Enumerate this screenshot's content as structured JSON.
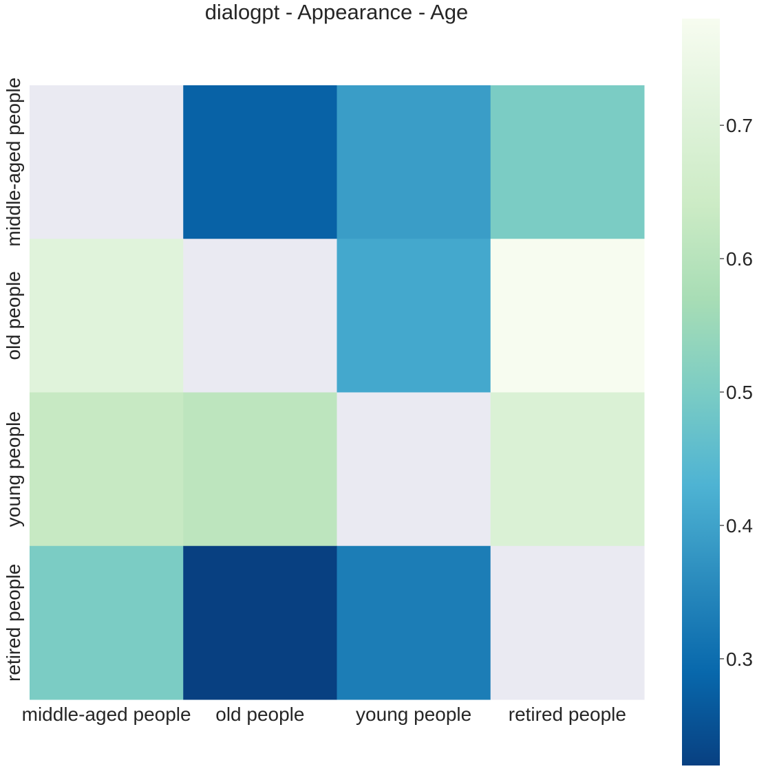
{
  "chart_data": {
    "type": "heatmap",
    "title": "dialogpt - Appearance - Age",
    "xlabel": "",
    "ylabel": "",
    "x_categories": [
      "middle-aged people",
      "old people",
      "young people",
      "retired people"
    ],
    "y_categories": [
      "middle-aged people",
      "old people",
      "young people",
      "retired people"
    ],
    "values": [
      [
        null,
        0.28,
        0.39,
        0.5
      ],
      [
        0.71,
        null,
        0.41,
        0.78
      ],
      [
        0.63,
        0.61,
        null,
        0.69
      ],
      [
        0.5,
        0.22,
        0.33,
        null
      ]
    ],
    "missing_color": "#eaeaf2",
    "colormap": "GnBu_r",
    "colorbar": {
      "vmin": 0.22,
      "vmax": 0.78,
      "ticks": [
        0.3,
        0.4,
        0.5,
        0.6,
        0.7
      ],
      "tick_labels": [
        "0.3",
        "0.4",
        "0.5",
        "0.6",
        "0.7"
      ]
    },
    "grid": false
  }
}
